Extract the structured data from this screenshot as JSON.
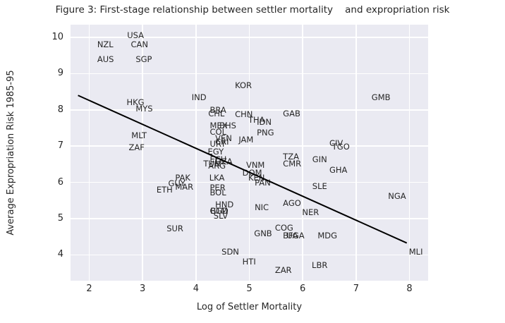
{
  "chart_data": {
    "type": "scatter",
    "title": "Figure 3: First-stage relationship between settler mortality    and expropriation risk",
    "xlabel": "Log of Settler Mortality",
    "ylabel": "Average Expropriation Risk 1985-95",
    "xlim": [
      1.65,
      8.35
    ],
    "ylim": [
      3.29,
      10.35
    ],
    "xticks": [
      2,
      3,
      4,
      5,
      6,
      7,
      8
    ],
    "yticks": [
      4,
      5,
      6,
      7,
      8,
      9,
      10
    ],
    "grid": true,
    "legend": "none",
    "marker": "country-code-text-labels",
    "colors": {
      "plot_bg": "#eaeaf2",
      "grid": "#ffffff",
      "text": "#262626",
      "trendline": "#000000",
      "outer_bg": "#ffffff"
    },
    "trendline": {
      "x1": 1.79,
      "y1": 8.4,
      "x2": 7.95,
      "y2": 4.33
    },
    "points": [
      {
        "label": "USA",
        "x": 2.71,
        "y": 9.98
      },
      {
        "label": "NZL",
        "x": 2.15,
        "y": 9.73
      },
      {
        "label": "CAN",
        "x": 2.78,
        "y": 9.73
      },
      {
        "label": "AUS",
        "x": 2.15,
        "y": 9.32
      },
      {
        "label": "SGP",
        "x": 2.87,
        "y": 9.32
      },
      {
        "label": "KOR",
        "x": 4.73,
        "y": 8.6
      },
      {
        "label": "GMB",
        "x": 7.29,
        "y": 8.27
      },
      {
        "label": "IND",
        "x": 3.92,
        "y": 8.27
      },
      {
        "label": "HKG",
        "x": 2.7,
        "y": 8.14
      },
      {
        "label": "MYS",
        "x": 2.87,
        "y": 7.95
      },
      {
        "label": "BRA",
        "x": 4.26,
        "y": 7.91
      },
      {
        "label": "CHL",
        "x": 4.23,
        "y": 7.82
      },
      {
        "label": "GAB",
        "x": 5.63,
        "y": 7.82
      },
      {
        "label": "CHN",
        "x": 4.73,
        "y": 7.8
      },
      {
        "label": "THA",
        "x": 4.98,
        "y": 7.64
      },
      {
        "label": "IDN",
        "x": 5.14,
        "y": 7.59
      },
      {
        "label": "MEX",
        "x": 4.26,
        "y": 7.5
      },
      {
        "label": "BHS",
        "x": 4.44,
        "y": 7.5
      },
      {
        "label": "COL",
        "x": 4.26,
        "y": 7.32
      },
      {
        "label": "PNG",
        "x": 5.14,
        "y": 7.3
      },
      {
        "label": "MLT",
        "x": 2.79,
        "y": 7.22
      },
      {
        "label": "VEN",
        "x": 4.36,
        "y": 7.14
      },
      {
        "label": "JAM",
        "x": 4.8,
        "y": 7.1
      },
      {
        "label": "CRI",
        "x": 4.36,
        "y": 7.05
      },
      {
        "label": "CIV",
        "x": 6.5,
        "y": 7.0
      },
      {
        "label": "URY",
        "x": 4.26,
        "y": 6.98
      },
      {
        "label": "TGO",
        "x": 6.55,
        "y": 6.91
      },
      {
        "label": "ZAF",
        "x": 2.74,
        "y": 6.88
      },
      {
        "label": "EGY",
        "x": 4.22,
        "y": 6.77
      },
      {
        "label": "TZA",
        "x": 5.63,
        "y": 6.64
      },
      {
        "label": "ECU",
        "x": 4.26,
        "y": 6.55
      },
      {
        "label": "GIN",
        "x": 6.18,
        "y": 6.55
      },
      {
        "label": "DZA",
        "x": 4.36,
        "y": 6.5
      },
      {
        "label": "TUN",
        "x": 4.14,
        "y": 6.45
      },
      {
        "label": "CMR",
        "x": 5.63,
        "y": 6.45
      },
      {
        "label": "VNM",
        "x": 4.94,
        "y": 6.41
      },
      {
        "label": "ARG",
        "x": 4.23,
        "y": 6.39
      },
      {
        "label": "GHA",
        "x": 6.5,
        "y": 6.27
      },
      {
        "label": "DOM",
        "x": 4.87,
        "y": 6.18
      },
      {
        "label": "PAK",
        "x": 3.61,
        "y": 6.05
      },
      {
        "label": "KEN",
        "x": 4.98,
        "y": 6.05
      },
      {
        "label": "LKA",
        "x": 4.25,
        "y": 6.05
      },
      {
        "label": "PAN",
        "x": 5.1,
        "y": 5.91
      },
      {
        "label": "GUY",
        "x": 3.48,
        "y": 5.89
      },
      {
        "label": "SLE",
        "x": 6.18,
        "y": 5.82
      },
      {
        "label": "MAR",
        "x": 3.61,
        "y": 5.8
      },
      {
        "label": "PER",
        "x": 4.26,
        "y": 5.77
      },
      {
        "label": "ETH",
        "x": 3.26,
        "y": 5.73
      },
      {
        "label": "BOL",
        "x": 4.26,
        "y": 5.64
      },
      {
        "label": "NGA",
        "x": 7.6,
        "y": 5.55
      },
      {
        "label": "AGO",
        "x": 5.63,
        "y": 5.36
      },
      {
        "label": "HND",
        "x": 4.36,
        "y": 5.32
      },
      {
        "label": "NIC",
        "x": 5.1,
        "y": 5.23
      },
      {
        "label": "BGD",
        "x": 4.27,
        "y": 5.14
      },
      {
        "label": "GTM",
        "x": 4.26,
        "y": 5.14
      },
      {
        "label": "NER",
        "x": 5.99,
        "y": 5.09
      },
      {
        "label": "SLV",
        "x": 4.33,
        "y": 5.0
      },
      {
        "label": "COG",
        "x": 5.48,
        "y": 4.68
      },
      {
        "label": "SUR",
        "x": 3.45,
        "y": 4.66
      },
      {
        "label": "GNB",
        "x": 5.09,
        "y": 4.51
      },
      {
        "label": "BFA",
        "x": 5.63,
        "y": 4.45
      },
      {
        "label": "UGA",
        "x": 5.7,
        "y": 4.45
      },
      {
        "label": "MDG",
        "x": 6.28,
        "y": 4.45
      },
      {
        "label": "SDN",
        "x": 4.48,
        "y": 4.0
      },
      {
        "label": "MLI",
        "x": 7.99,
        "y": 4.0
      },
      {
        "label": "HTI",
        "x": 4.87,
        "y": 3.73
      },
      {
        "label": "LBR",
        "x": 6.17,
        "y": 3.64
      },
      {
        "label": "ZAR",
        "x": 5.48,
        "y": 3.5
      }
    ]
  }
}
